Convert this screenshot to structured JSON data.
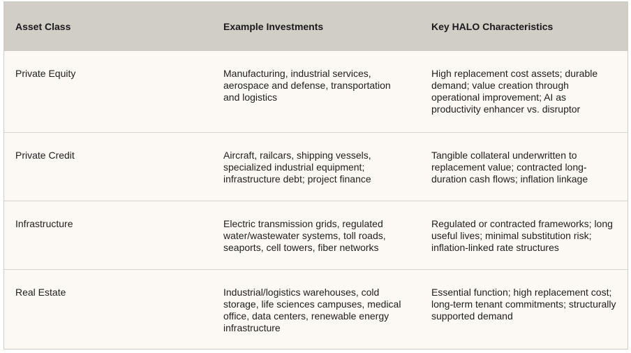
{
  "table": {
    "headers": [
      "Asset Class",
      "Example Investments",
      "Key HALO Characteristics"
    ],
    "rows": [
      {
        "asset_class": "Private Equity",
        "examples": "Manufacturing, industrial services, aerospace and defense, transportation and logistics",
        "characteristics": "High replacement cost assets; durable demand; value creation through operational improvement; AI as productivity enhancer vs. disruptor"
      },
      {
        "asset_class": "Private Credit",
        "examples": "Aircraft, railcars, shipping vessels, specialized industrial equipment; infrastructure debt; project finance",
        "characteristics": "Tangible collateral underwritten to replacement value; contracted long-duration cash flows; inflation linkage"
      },
      {
        "asset_class": "Infrastructure",
        "examples": "Electric transmission grids, regulated water/wastewater systems, toll roads, seaports, cell towers, fiber networks",
        "characteristics": "Regulated or contracted frameworks; long useful lives; minimal substitution risk; inflation-linked rate structures"
      },
      {
        "asset_class": "Real Estate",
        "examples": "Industrial/logistics warehouses, cold storage, life sciences campuses, medical office, data centers, renewable energy infrastructure",
        "characteristics": "Essential function; high replacement cost; long-term tenant commitments; structurally supported demand"
      }
    ]
  }
}
